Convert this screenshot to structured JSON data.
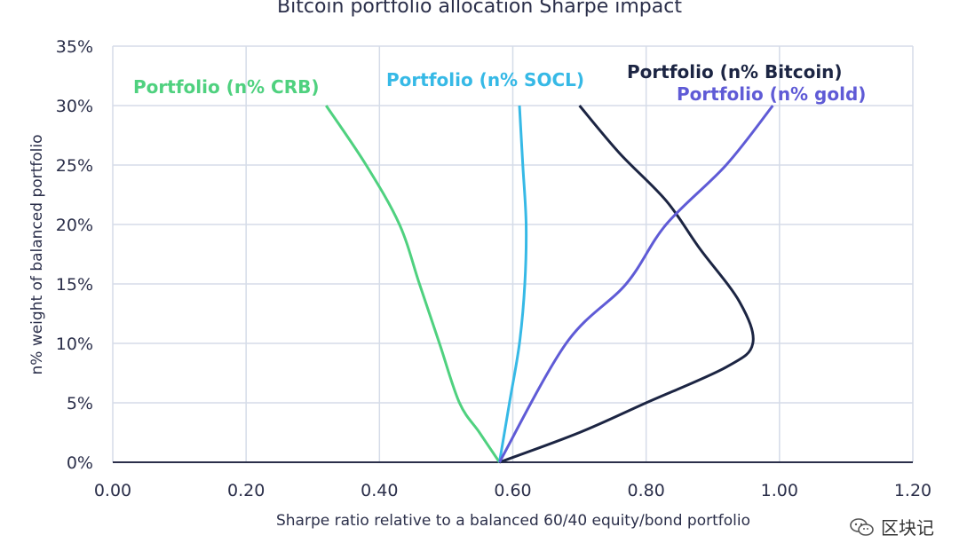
{
  "chart_data": {
    "type": "line",
    "title": "Bitcoin portfolio allocation Sharpe impact",
    "xlabel": "Sharpe ratio relative to a balanced 60/40 equity/bond portfolio",
    "ylabel": "n% weight of balanced portfolio",
    "xlim": [
      0,
      1.2
    ],
    "ylim": [
      0,
      0.35
    ],
    "x_ticks": [
      "0.00",
      "0.20",
      "0.40",
      "0.60",
      "0.80",
      "1.00",
      "1.20"
    ],
    "y_ticks": [
      "0%",
      "5%",
      "10%",
      "15%",
      "20%",
      "25%",
      "30%",
      "35%"
    ],
    "grid": true,
    "series": [
      {
        "name": "Portfolio (n% CRB)",
        "color": "#4fd17f",
        "points": [
          [
            0.58,
            0.0
          ],
          [
            0.55,
            0.025
          ],
          [
            0.52,
            0.05
          ],
          [
            0.49,
            0.1
          ],
          [
            0.46,
            0.15
          ],
          [
            0.43,
            0.2
          ],
          [
            0.38,
            0.25
          ],
          [
            0.32,
            0.3
          ]
        ]
      },
      {
        "name": "Portfolio (n% SOCL)",
        "color": "#36b9e6",
        "points": [
          [
            0.58,
            0.0
          ],
          [
            0.595,
            0.05
          ],
          [
            0.61,
            0.1
          ],
          [
            0.618,
            0.15
          ],
          [
            0.62,
            0.2
          ],
          [
            0.615,
            0.25
          ],
          [
            0.61,
            0.3
          ]
        ]
      },
      {
        "name": "Portfolio (n% Bitcoin)",
        "color": "#1c2543",
        "points": [
          [
            0.58,
            0.0
          ],
          [
            0.7,
            0.025
          ],
          [
            0.8,
            0.05
          ],
          [
            0.92,
            0.08
          ],
          [
            0.96,
            0.1
          ],
          [
            0.94,
            0.135
          ],
          [
            0.88,
            0.18
          ],
          [
            0.83,
            0.22
          ],
          [
            0.76,
            0.26
          ],
          [
            0.7,
            0.3
          ]
        ]
      },
      {
        "name": "Portfolio (n% gold)",
        "color": "#5f5bd6",
        "points": [
          [
            0.58,
            0.0
          ],
          [
            0.68,
            0.1
          ],
          [
            0.77,
            0.15
          ],
          [
            0.83,
            0.2
          ],
          [
            0.92,
            0.25
          ],
          [
            0.99,
            0.3
          ]
        ]
      }
    ]
  },
  "watermark": {
    "text": "区块记",
    "icon": "wechat-icon"
  }
}
